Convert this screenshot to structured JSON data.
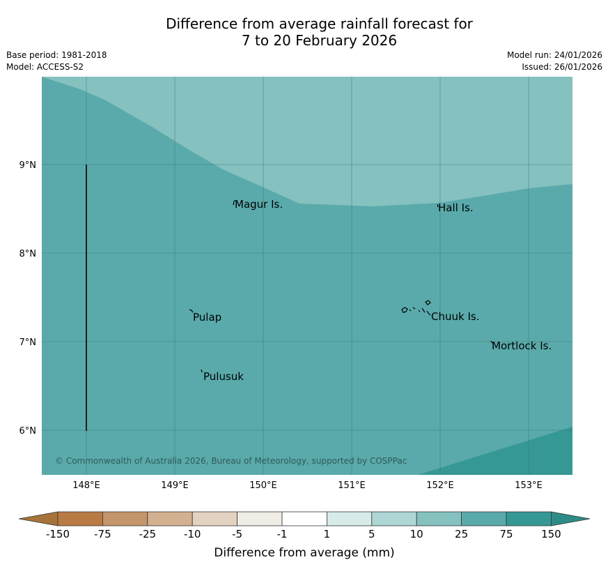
{
  "title": {
    "line1": "Difference from average rainfall forecast for",
    "line2": "7 to 20 February 2026"
  },
  "meta": {
    "base_period": "Base period: 1981-2018",
    "model": "Model: ACCESS-S2",
    "model_run": "Model run: 24/01/2026",
    "issued": "Issued: 26/01/2026"
  },
  "map": {
    "lon_labels": [
      "148°E",
      "149°E",
      "150°E",
      "151°E",
      "152°E",
      "153°E"
    ],
    "lat_labels": [
      "9°N",
      "8°N",
      "7°N",
      "6°N"
    ],
    "places": {
      "magur": "Magur Is.",
      "hall": "Hall Is.",
      "pulap": "Pulap",
      "chuuk": "Chuuk Is.",
      "mortlock": "Mortlock Is.",
      "pulusuk": "Pulusuk"
    },
    "copyright": "© Commonwealth of Australia 2026, Bureau of Meteorology, supported by COSPPac",
    "zone_colors": {
      "5_to_10": "#84c1bf",
      "10_to_25": "#5aaaab",
      "25_to_75": "#359894"
    }
  },
  "colorbar": {
    "title": "Difference from average (mm)",
    "labels": [
      "-150",
      "-75",
      "-25",
      "-10",
      "-5",
      "-1",
      "1",
      "5",
      "10",
      "25",
      "75",
      "150"
    ],
    "colors": [
      "#a7733a",
      "#b97b44",
      "#c5956b",
      "#d2b090",
      "#e4d2c1",
      "#f0ede7",
      "#ffffff",
      "#d7ebe9",
      "#add6d4",
      "#84c1bf",
      "#5aaaab",
      "#359894",
      "#2e8c88"
    ]
  }
}
